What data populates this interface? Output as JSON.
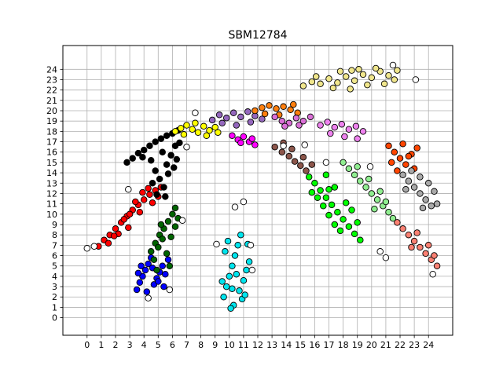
{
  "chart_data": {
    "type": "scatter",
    "title": "SBM12784",
    "xlabel": "",
    "ylabel": "",
    "xlim": [
      -1.7,
      25.7
    ],
    "ylim": [
      -1.7,
      26.3
    ],
    "xticks": [
      0,
      1,
      2,
      3,
      4,
      5,
      6,
      7,
      8,
      9,
      10,
      11,
      12,
      13,
      14,
      15,
      16,
      17,
      18,
      19,
      20,
      21,
      22,
      23,
      24
    ],
    "yticks": [
      0,
      1,
      2,
      3,
      4,
      5,
      6,
      7,
      8,
      9,
      10,
      11,
      12,
      13,
      14,
      15,
      16,
      17,
      18,
      19,
      20,
      21,
      22,
      23,
      24
    ],
    "grid": true,
    "marker_edge_color": "#000000",
    "clusters": [
      {
        "color": "#ff0000",
        "points": [
          [
            0.8,
            6.9
          ],
          [
            1.2,
            7.5
          ],
          [
            1.6,
            8.0
          ],
          [
            2.0,
            8.6
          ],
          [
            2.4,
            9.2
          ],
          [
            2.8,
            9.8
          ],
          [
            3.2,
            10.4
          ],
          [
            3.6,
            10.9
          ],
          [
            4.0,
            11.4
          ],
          [
            4.4,
            11.9
          ],
          [
            4.8,
            12.3
          ],
          [
            5.2,
            12.6
          ],
          [
            1.5,
            7.2
          ],
          [
            2.2,
            8.1
          ],
          [
            2.6,
            9.5
          ],
          [
            3.0,
            10.0
          ],
          [
            3.4,
            11.2
          ],
          [
            3.9,
            12.1
          ],
          [
            4.3,
            12.5
          ],
          [
            4.6,
            11.1
          ],
          [
            2.9,
            8.7
          ],
          [
            1.9,
            7.9
          ],
          [
            3.7,
            10.2
          ],
          [
            5.0,
            11.7
          ]
        ]
      },
      {
        "color": "#000000",
        "points": [
          [
            2.8,
            15.0
          ],
          [
            3.2,
            15.4
          ],
          [
            3.6,
            15.9
          ],
          [
            4.0,
            16.2
          ],
          [
            4.4,
            16.6
          ],
          [
            4.8,
            17.0
          ],
          [
            5.2,
            17.3
          ],
          [
            5.6,
            17.6
          ],
          [
            6.0,
            17.8
          ],
          [
            6.4,
            18.1
          ],
          [
            4.5,
            15.2
          ],
          [
            4.8,
            14.2
          ],
          [
            5.1,
            13.4
          ],
          [
            5.4,
            12.6
          ],
          [
            5.6,
            14.8
          ],
          [
            5.9,
            15.7
          ],
          [
            6.2,
            16.6
          ],
          [
            6.5,
            16.9
          ],
          [
            4.6,
            13.0
          ],
          [
            5.3,
            16.0
          ],
          [
            5.7,
            13.9
          ],
          [
            6.1,
            14.5
          ],
          [
            4.9,
            11.9
          ],
          [
            5.5,
            11.7
          ],
          [
            6.3,
            15.3
          ],
          [
            3.9,
            15.5
          ]
        ]
      },
      {
        "color": "#0000ff",
        "points": [
          [
            3.5,
            2.7
          ],
          [
            3.7,
            3.4
          ],
          [
            3.9,
            4.0
          ],
          [
            4.1,
            4.6
          ],
          [
            4.3,
            5.2
          ],
          [
            4.5,
            5.8
          ],
          [
            4.7,
            3.2
          ],
          [
            4.9,
            3.8
          ],
          [
            5.1,
            4.4
          ],
          [
            5.3,
            5.0
          ],
          [
            5.5,
            4.2
          ],
          [
            5.7,
            5.6
          ],
          [
            3.8,
            5.0
          ],
          [
            4.2,
            2.5
          ],
          [
            4.6,
            4.8
          ],
          [
            5.0,
            3.5
          ],
          [
            5.4,
            3.0
          ],
          [
            3.6,
            4.3
          ]
        ]
      },
      {
        "color": "#006400",
        "points": [
          [
            4.5,
            6.4
          ],
          [
            4.8,
            7.2
          ],
          [
            5.1,
            8.0
          ],
          [
            5.4,
            8.6
          ],
          [
            5.7,
            9.3
          ],
          [
            6.0,
            10.0
          ],
          [
            6.2,
            10.6
          ],
          [
            4.7,
            5.6
          ],
          [
            5.0,
            6.8
          ],
          [
            5.3,
            7.6
          ],
          [
            5.6,
            6.2
          ],
          [
            5.9,
            7.8
          ],
          [
            6.2,
            8.8
          ],
          [
            6.4,
            9.6
          ],
          [
            5.2,
            9.0
          ],
          [
            5.8,
            5.0
          ],
          [
            4.9,
            4.6
          ]
        ]
      },
      {
        "color": "#00e5ee",
        "points": [
          [
            9.6,
            2.0
          ],
          [
            9.8,
            3.0
          ],
          [
            10.0,
            4.0
          ],
          [
            10.2,
            5.0
          ],
          [
            10.4,
            6.0
          ],
          [
            10.6,
            7.0
          ],
          [
            10.8,
            8.0
          ],
          [
            10.3,
            1.2
          ],
          [
            10.7,
            2.6
          ],
          [
            11.0,
            3.6
          ],
          [
            11.2,
            4.6
          ],
          [
            11.4,
            5.4
          ],
          [
            9.7,
            6.4
          ],
          [
            9.9,
            7.4
          ],
          [
            10.1,
            0.9
          ],
          [
            10.9,
            1.8
          ],
          [
            11.3,
            7.1
          ],
          [
            10.5,
            4.2
          ],
          [
            9.5,
            3.5
          ],
          [
            11.1,
            2.2
          ],
          [
            10.2,
            2.8
          ]
        ]
      },
      {
        "color": "#ffff00",
        "points": [
          [
            6.2,
            18.0
          ],
          [
            6.6,
            18.3
          ],
          [
            7.0,
            18.6
          ],
          [
            7.4,
            18.2
          ],
          [
            7.8,
            17.9
          ],
          [
            8.2,
            18.5
          ],
          [
            8.6,
            18.1
          ],
          [
            9.0,
            18.4
          ],
          [
            6.8,
            17.7
          ],
          [
            7.6,
            18.8
          ],
          [
            8.4,
            17.6
          ],
          [
            9.2,
            17.9
          ]
        ]
      },
      {
        "color": "#9467bd",
        "points": [
          [
            8.8,
            19.1
          ],
          [
            9.3,
            19.6
          ],
          [
            9.8,
            19.3
          ],
          [
            10.3,
            19.8
          ],
          [
            10.8,
            19.4
          ],
          [
            11.3,
            19.9
          ],
          [
            11.8,
            19.5
          ],
          [
            9.5,
            18.8
          ],
          [
            10.5,
            18.6
          ],
          [
            11.5,
            18.9
          ],
          [
            12.3,
            19.2
          ]
        ]
      },
      {
        "color": "#ff7f0e",
        "points": [
          [
            11.8,
            20.0
          ],
          [
            12.3,
            20.3
          ],
          [
            12.8,
            20.5
          ],
          [
            13.3,
            20.2
          ],
          [
            13.8,
            20.4
          ],
          [
            14.3,
            20.1
          ],
          [
            14.8,
            19.8
          ],
          [
            12.5,
            19.7
          ],
          [
            13.5,
            19.6
          ],
          [
            14.5,
            20.6
          ]
        ]
      },
      {
        "color": "#ff00ff",
        "points": [
          [
            10.2,
            17.6
          ],
          [
            10.6,
            17.2
          ],
          [
            11.0,
            17.5
          ],
          [
            11.4,
            17.0
          ],
          [
            11.8,
            16.7
          ],
          [
            10.8,
            16.9
          ],
          [
            11.6,
            17.3
          ]
        ]
      },
      {
        "color": "#da70d6",
        "points": [
          [
            13.2,
            19.4
          ],
          [
            13.7,
            19.0
          ],
          [
            14.2,
            18.8
          ],
          [
            14.7,
            19.3
          ],
          [
            15.2,
            19.0
          ],
          [
            15.7,
            19.4
          ],
          [
            13.9,
            18.5
          ],
          [
            14.9,
            18.6
          ]
        ]
      },
      {
        "color": "#8c564b",
        "points": [
          [
            13.2,
            16.5
          ],
          [
            13.7,
            16.0
          ],
          [
            14.2,
            15.6
          ],
          [
            14.6,
            15.1
          ],
          [
            15.0,
            14.7
          ],
          [
            15.4,
            14.2
          ],
          [
            13.8,
            16.9
          ],
          [
            14.4,
            16.3
          ],
          [
            15.2,
            15.5
          ],
          [
            15.8,
            14.8
          ]
        ]
      },
      {
        "color": "#00ff00",
        "points": [
          [
            15.6,
            13.6
          ],
          [
            16.0,
            13.0
          ],
          [
            16.4,
            12.3
          ],
          [
            16.8,
            11.6
          ],
          [
            17.2,
            10.9
          ],
          [
            17.6,
            10.2
          ],
          [
            18.0,
            9.5
          ],
          [
            18.4,
            8.8
          ],
          [
            18.8,
            8.1
          ],
          [
            19.2,
            7.5
          ],
          [
            16.2,
            11.6
          ],
          [
            16.6,
            10.8
          ],
          [
            17.0,
            9.9
          ],
          [
            17.4,
            9.0
          ],
          [
            17.8,
            8.4
          ],
          [
            16.8,
            13.8
          ],
          [
            17.4,
            12.6
          ],
          [
            18.2,
            11.1
          ],
          [
            18.6,
            10.4
          ],
          [
            19.0,
            9.2
          ],
          [
            15.8,
            12.1
          ],
          [
            17.0,
            12.4
          ]
        ]
      },
      {
        "color": "#ee82ee",
        "points": [
          [
            16.4,
            18.6
          ],
          [
            16.9,
            18.9
          ],
          [
            17.4,
            18.4
          ],
          [
            17.9,
            18.7
          ],
          [
            18.4,
            18.2
          ],
          [
            18.9,
            18.5
          ],
          [
            19.4,
            18.0
          ],
          [
            17.1,
            17.8
          ],
          [
            18.1,
            17.5
          ],
          [
            19.0,
            17.3
          ]
        ]
      },
      {
        "color": "#f0e68c",
        "points": [
          [
            15.2,
            22.4
          ],
          [
            15.8,
            22.8
          ],
          [
            16.4,
            22.6
          ],
          [
            17.0,
            23.1
          ],
          [
            17.6,
            22.7
          ],
          [
            18.2,
            23.3
          ],
          [
            18.8,
            22.9
          ],
          [
            19.4,
            23.5
          ],
          [
            20.0,
            23.2
          ],
          [
            20.6,
            23.8
          ],
          [
            21.2,
            23.4
          ],
          [
            21.8,
            23.9
          ],
          [
            16.1,
            23.3
          ],
          [
            17.3,
            22.2
          ],
          [
            18.5,
            22.1
          ],
          [
            19.7,
            22.5
          ],
          [
            20.9,
            22.6
          ],
          [
            21.6,
            23.0
          ],
          [
            19.1,
            24.0
          ],
          [
            20.3,
            24.1
          ],
          [
            17.8,
            23.8
          ],
          [
            18.6,
            23.9
          ]
        ]
      },
      {
        "color": "#90ee90",
        "points": [
          [
            18.0,
            15.0
          ],
          [
            18.4,
            14.4
          ],
          [
            18.8,
            13.8
          ],
          [
            19.2,
            13.2
          ],
          [
            19.6,
            12.6
          ],
          [
            20.0,
            12.0
          ],
          [
            20.4,
            11.4
          ],
          [
            20.8,
            10.8
          ],
          [
            21.2,
            10.2
          ],
          [
            21.5,
            9.6
          ],
          [
            19.0,
            14.6
          ],
          [
            19.8,
            13.4
          ],
          [
            20.6,
            12.2
          ],
          [
            21.0,
            11.2
          ],
          [
            20.2,
            10.5
          ]
        ]
      },
      {
        "color": "#ff4500",
        "points": [
          [
            21.2,
            16.6
          ],
          [
            21.6,
            16.0
          ],
          [
            22.0,
            15.4
          ],
          [
            22.4,
            14.8
          ],
          [
            22.8,
            15.8
          ],
          [
            23.2,
            16.4
          ],
          [
            21.4,
            15.0
          ],
          [
            22.2,
            16.8
          ],
          [
            23.0,
            14.4
          ],
          [
            21.8,
            14.2
          ],
          [
            22.6,
            15.6
          ]
        ]
      },
      {
        "color": "#a9a9a9",
        "points": [
          [
            22.2,
            13.8
          ],
          [
            22.6,
            13.2
          ],
          [
            23.0,
            12.6
          ],
          [
            23.4,
            12.0
          ],
          [
            23.8,
            11.4
          ],
          [
            24.2,
            10.8
          ],
          [
            22.8,
            14.2
          ],
          [
            23.4,
            13.6
          ],
          [
            24.0,
            13.0
          ],
          [
            24.4,
            12.2
          ],
          [
            22.4,
            12.4
          ],
          [
            23.6,
            10.6
          ],
          [
            24.6,
            11.0
          ]
        ]
      },
      {
        "color": "#fa8072",
        "points": [
          [
            21.8,
            9.2
          ],
          [
            22.2,
            8.6
          ],
          [
            22.6,
            8.0
          ],
          [
            23.0,
            7.4
          ],
          [
            23.4,
            6.8
          ],
          [
            23.8,
            6.2
          ],
          [
            24.2,
            5.6
          ],
          [
            24.6,
            5.0
          ],
          [
            23.2,
            8.2
          ],
          [
            24.0,
            7.0
          ],
          [
            22.8,
            6.8
          ],
          [
            24.4,
            6.0
          ]
        ]
      },
      {
        "color": "#ffffff",
        "points": [
          [
            0.0,
            6.7
          ],
          [
            0.5,
            6.9
          ],
          [
            2.9,
            12.4
          ],
          [
            5.8,
            2.7
          ],
          [
            7.0,
            16.5
          ],
          [
            7.6,
            19.8
          ],
          [
            10.4,
            10.7
          ],
          [
            11.0,
            11.2
          ],
          [
            9.1,
            7.1
          ],
          [
            11.5,
            7.0
          ],
          [
            11.6,
            4.6
          ],
          [
            15.3,
            16.7
          ],
          [
            20.6,
            6.4
          ],
          [
            21.0,
            5.8
          ],
          [
            21.5,
            24.4
          ],
          [
            23.1,
            23.0
          ],
          [
            16.8,
            15.0
          ],
          [
            24.3,
            4.2
          ],
          [
            4.3,
            1.9
          ],
          [
            6.7,
            9.4
          ],
          [
            13.8,
            16.6
          ],
          [
            19.9,
            14.6
          ]
        ]
      }
    ]
  }
}
